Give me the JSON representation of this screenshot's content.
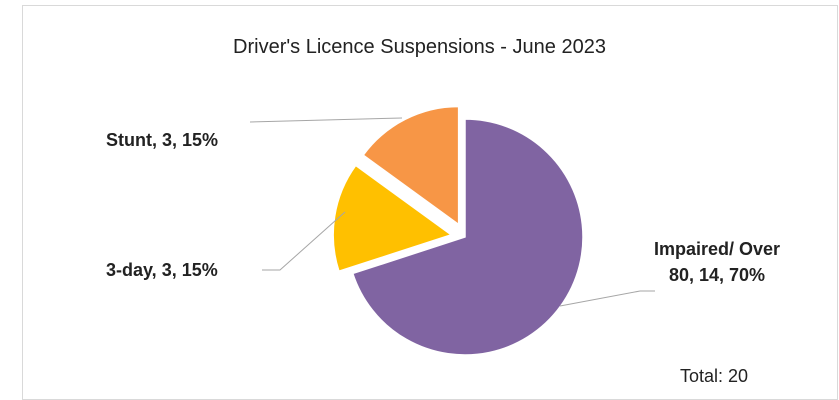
{
  "chart_data": {
    "type": "pie",
    "title": "Driver's Licence Suspensions - June 2023",
    "values": [
      14,
      3,
      3
    ],
    "value_labels": [
      "Impaired/ Over 80, 14, 70%",
      "3-day, 3, 15%",
      "Stunt, 3, 15%"
    ],
    "colors": [
      "#8064a2",
      "#ffc000",
      "#f79646"
    ],
    "annotation": "Total: 20"
  }
}
